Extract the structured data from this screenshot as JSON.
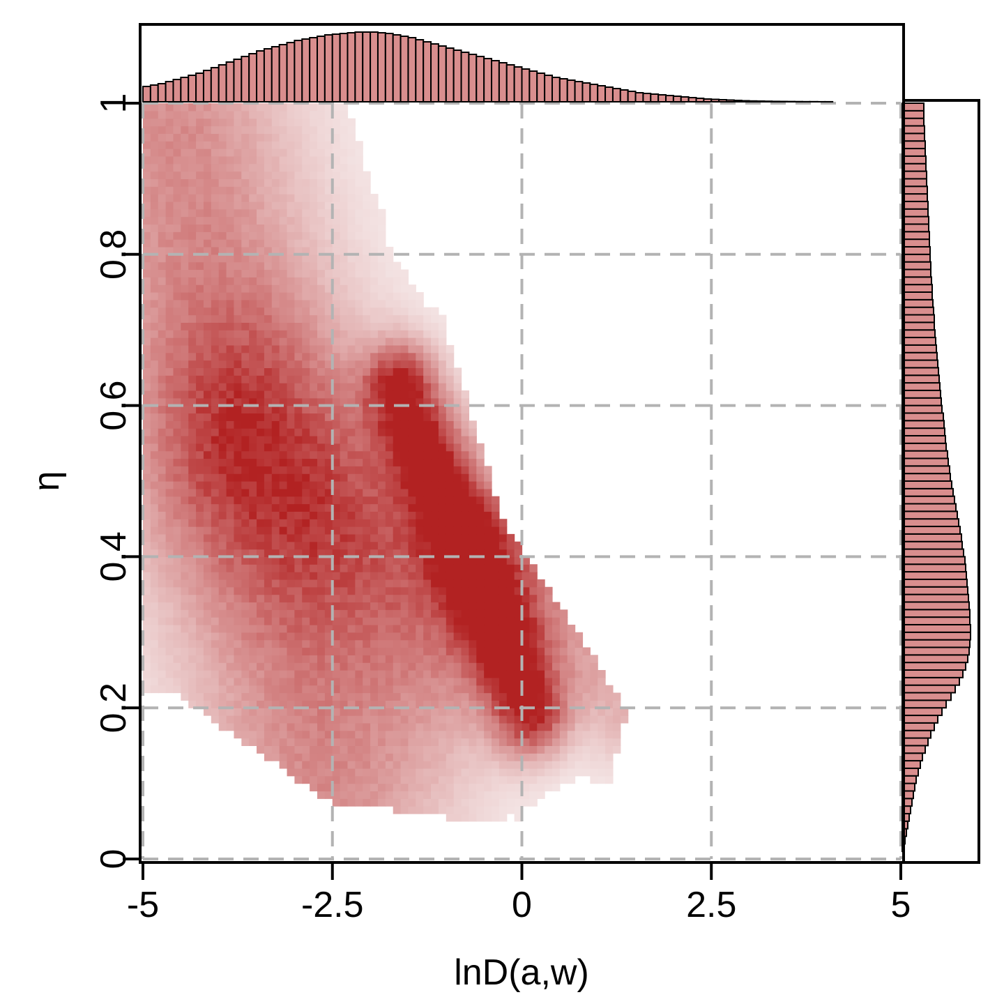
{
  "chart_data": {
    "type": "heatmap",
    "xlabel": "lnD(a,w)",
    "ylabel": "η",
    "xlim": [
      -5,
      5
    ],
    "ylim": [
      0,
      1
    ],
    "xticks": [
      "-5",
      "-2.5",
      "0",
      "2.5",
      "5"
    ],
    "xtick_values": [
      -5,
      -2.5,
      0,
      2.5,
      5
    ],
    "yticks": [
      "0",
      "0.2",
      "0.4",
      "0.6",
      "0.8",
      "1"
    ],
    "ytick_values": [
      0,
      0.2,
      0.4,
      0.6,
      0.8,
      1
    ],
    "grid": true,
    "colors": {
      "high": "#b22222",
      "low": "#f7eeee",
      "hist_fill": "#d98e8e",
      "grid": "#b3b3b3"
    },
    "density_bins": {
      "nx": 100,
      "ny": 100
    },
    "density_ridges": [
      {
        "x0": 0.1,
        "y0": 0.2,
        "x1": -1.6,
        "y1": 0.62,
        "width": 0.45,
        "weight": 1.0
      },
      {
        "x0": -0.9,
        "y0": 0.35,
        "x1": -3.6,
        "y1": 0.55,
        "width": 1.3,
        "weight": 0.55
      },
      {
        "x0": -2.6,
        "y0": 0.12,
        "x1": -4.6,
        "y1": 0.95,
        "width": 1.5,
        "weight": 0.45
      },
      {
        "x0": 1.4,
        "y0": 0.2,
        "x1": -0.4,
        "y1": 0.42,
        "width": 0.6,
        "weight": 0.25
      }
    ],
    "x_marginal": {
      "bin_edges_from": -5,
      "bin_width": 0.1,
      "density": [
        0.22,
        0.24,
        0.26,
        0.29,
        0.32,
        0.35,
        0.38,
        0.41,
        0.45,
        0.49,
        0.53,
        0.57,
        0.61,
        0.65,
        0.69,
        0.73,
        0.76,
        0.79,
        0.82,
        0.85,
        0.88,
        0.9,
        0.92,
        0.94,
        0.96,
        0.97,
        0.98,
        0.99,
        1.0,
        1.0,
        1.0,
        0.99,
        0.98,
        0.96,
        0.94,
        0.92,
        0.89,
        0.86,
        0.83,
        0.8,
        0.77,
        0.74,
        0.71,
        0.68,
        0.65,
        0.62,
        0.59,
        0.56,
        0.53,
        0.5,
        0.47,
        0.44,
        0.41,
        0.38,
        0.35,
        0.33,
        0.31,
        0.29,
        0.27,
        0.25,
        0.23,
        0.21,
        0.19,
        0.17,
        0.15,
        0.13,
        0.12,
        0.11,
        0.1,
        0.09,
        0.08,
        0.07,
        0.06,
        0.05,
        0.04,
        0.035,
        0.03,
        0.025,
        0.02,
        0.015,
        0.012,
        0.01,
        0.008,
        0.006,
        0.005,
        0.004,
        0.003,
        0.002,
        0.002,
        0.001,
        0.001,
        0,
        0,
        0,
        0,
        0,
        0,
        0,
        0,
        0
      ]
    },
    "y_marginal": {
      "bin_edges_from": 0,
      "bin_width": 0.01,
      "density": [
        0.0,
        0.02,
        0.04,
        0.06,
        0.08,
        0.1,
        0.12,
        0.14,
        0.16,
        0.18,
        0.2,
        0.23,
        0.26,
        0.29,
        0.33,
        0.37,
        0.41,
        0.46,
        0.51,
        0.57,
        0.63,
        0.7,
        0.76,
        0.82,
        0.87,
        0.91,
        0.94,
        0.96,
        0.97,
        0.98,
        0.98,
        0.97,
        0.97,
        0.96,
        0.95,
        0.94,
        0.93,
        0.92,
        0.91,
        0.9,
        0.88,
        0.86,
        0.85,
        0.83,
        0.81,
        0.79,
        0.77,
        0.75,
        0.73,
        0.71,
        0.69,
        0.68,
        0.66,
        0.65,
        0.63,
        0.62,
        0.61,
        0.6,
        0.59,
        0.57,
        0.56,
        0.55,
        0.54,
        0.53,
        0.52,
        0.51,
        0.5,
        0.49,
        0.48,
        0.47,
        0.46,
        0.46,
        0.45,
        0.44,
        0.43,
        0.43,
        0.42,
        0.41,
        0.41,
        0.4,
        0.4,
        0.39,
        0.39,
        0.38,
        0.38,
        0.37,
        0.37,
        0.36,
        0.36,
        0.35,
        0.35,
        0.34,
        0.34,
        0.33,
        0.33,
        0.32,
        0.32,
        0.31,
        0.31,
        0.31
      ]
    }
  }
}
